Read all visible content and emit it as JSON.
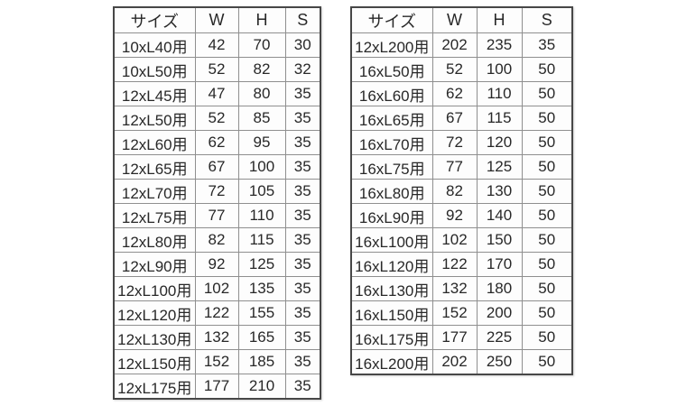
{
  "page": {
    "background_color": "#ffffff",
    "text_color": "#282828",
    "outer_border_color": "#474747",
    "grid_line_color": "#8f8f8f"
  },
  "tables": [
    {
      "name": "left-size-spec-table",
      "headers": [
        "サイズ",
        "W",
        "H",
        "S"
      ],
      "rows": [
        [
          "10xL40用",
          "42",
          "70",
          "30"
        ],
        [
          "10xL50用",
          "52",
          "82",
          "32"
        ],
        [
          "12xL45用",
          "47",
          "80",
          "35"
        ],
        [
          "12xL50用",
          "52",
          "85",
          "35"
        ],
        [
          "12xL60用",
          "62",
          "95",
          "35"
        ],
        [
          "12xL65用",
          "67",
          "100",
          "35"
        ],
        [
          "12xL70用",
          "72",
          "105",
          "35"
        ],
        [
          "12xL75用",
          "77",
          "110",
          "35"
        ],
        [
          "12xL80用",
          "82",
          "115",
          "35"
        ],
        [
          "12xL90用",
          "92",
          "125",
          "35"
        ],
        [
          "12xL100用",
          "102",
          "135",
          "35"
        ],
        [
          "12xL120用",
          "122",
          "155",
          "35"
        ],
        [
          "12xL130用",
          "132",
          "165",
          "35"
        ],
        [
          "12xL150用",
          "152",
          "185",
          "35"
        ],
        [
          "12xL175用",
          "177",
          "210",
          "35"
        ]
      ]
    },
    {
      "name": "right-size-spec-table",
      "headers": [
        "サイズ",
        "W",
        "H",
        "S"
      ],
      "rows": [
        [
          "12xL200用",
          "202",
          "235",
          "35"
        ],
        [
          "16xL50用",
          "52",
          "100",
          "50"
        ],
        [
          "16xL60用",
          "62",
          "110",
          "50"
        ],
        [
          "16xL65用",
          "67",
          "115",
          "50"
        ],
        [
          "16xL70用",
          "72",
          "120",
          "50"
        ],
        [
          "16xL75用",
          "77",
          "125",
          "50"
        ],
        [
          "16xL80用",
          "82",
          "130",
          "50"
        ],
        [
          "16xL90用",
          "92",
          "140",
          "50"
        ],
        [
          "16xL100用",
          "102",
          "150",
          "50"
        ],
        [
          "16xL120用",
          "122",
          "170",
          "50"
        ],
        [
          "16xL130用",
          "132",
          "180",
          "50"
        ],
        [
          "16xL150用",
          "152",
          "200",
          "50"
        ],
        [
          "16xL175用",
          "177",
          "225",
          "50"
        ],
        [
          "16xL200用",
          "202",
          "250",
          "50"
        ]
      ]
    }
  ]
}
